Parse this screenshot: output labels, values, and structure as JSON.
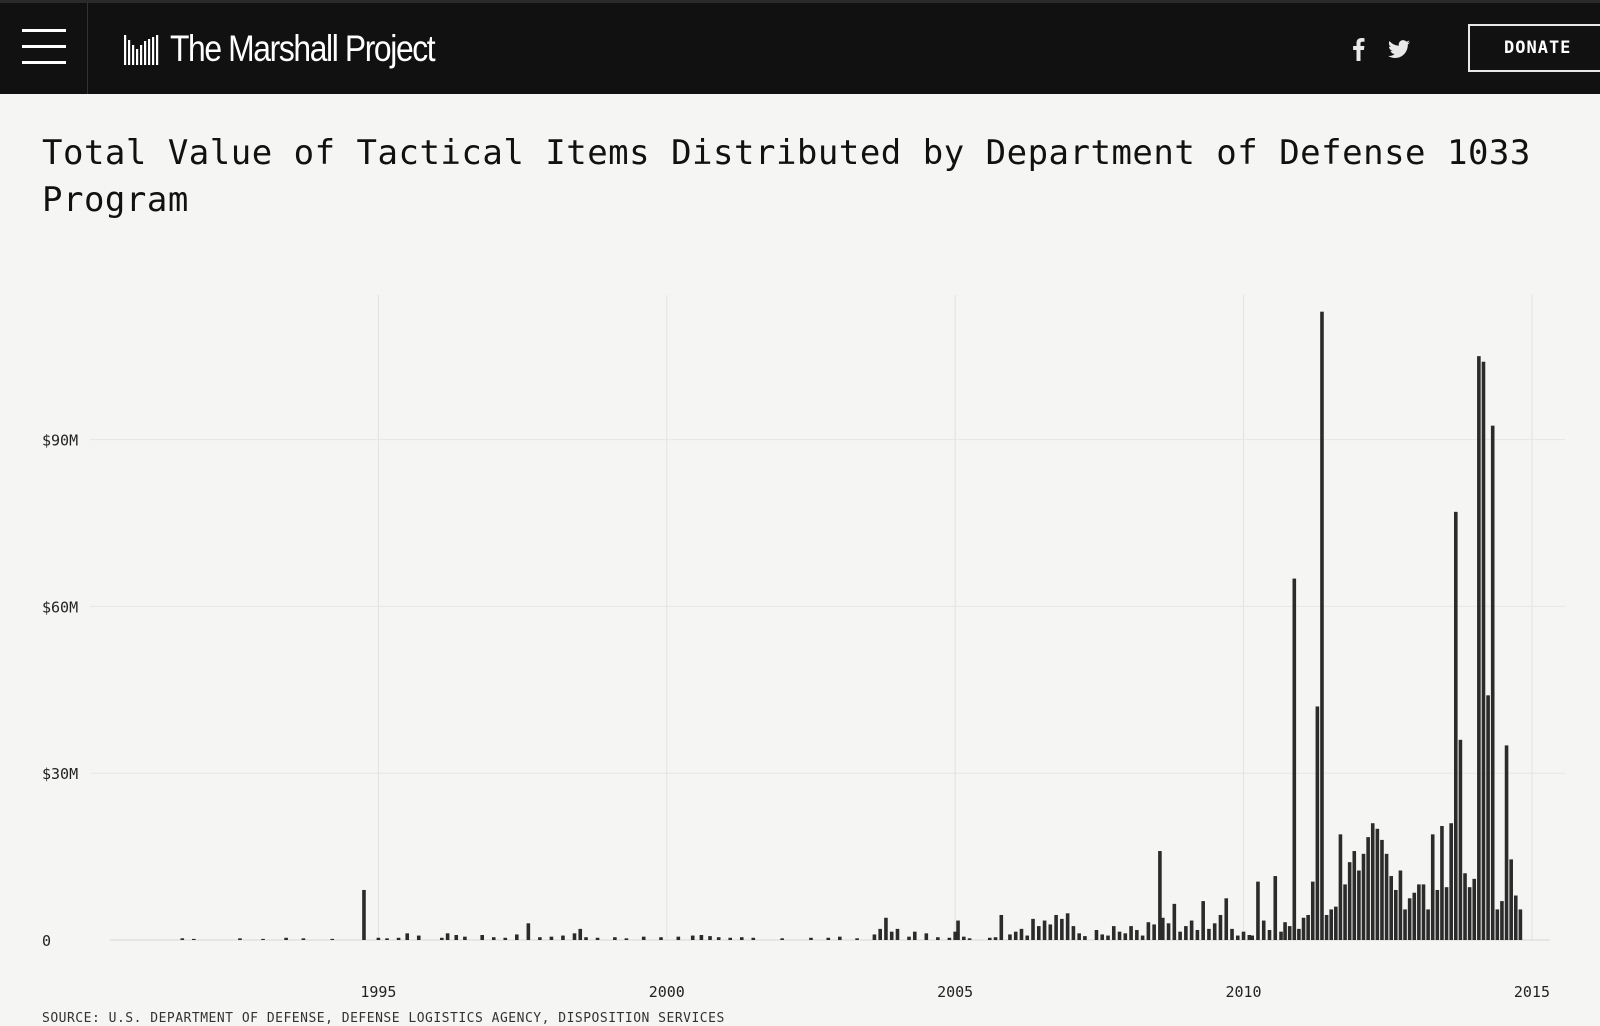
{
  "header": {
    "logo_text": "The Marshall Project",
    "donate_label": "DONATE"
  },
  "icons": {
    "menu": "hamburger-icon",
    "logo": "bars-logo-icon",
    "facebook": "facebook-icon",
    "twitter": "twitter-icon"
  },
  "colors": {
    "header_bg": "#111111",
    "page_bg": "#f5f5f3",
    "bar": "#2b2b2b"
  },
  "chart_data": {
    "type": "bar",
    "title": "Total Value of Tactical Items Distributed by Department of Defense 1033 Program",
    "y_ticks": [
      {
        "value": 0,
        "label": "0"
      },
      {
        "value": 30,
        "label": "$30M"
      },
      {
        "value": 60,
        "label": "$60M"
      },
      {
        "value": 90,
        "label": "$90M"
      }
    ],
    "x_ticks": [
      {
        "value": 1995,
        "label": "1995"
      },
      {
        "value": 2000,
        "label": "2000"
      },
      {
        "value": 2005,
        "label": "2005"
      },
      {
        "value": 2010,
        "label": "2010"
      },
      {
        "value": 2015,
        "label": "2015"
      }
    ],
    "xlim": [
      1990,
      2015.4
    ],
    "ylim": [
      0,
      116
    ],
    "y_unit": "millions of dollars",
    "grid": "vertical at year ticks, horizontal at value ticks",
    "x": [
      1991.6,
      1991.8,
      1992.6,
      1993.0,
      1993.4,
      1993.7,
      1994.2,
      1994.75,
      1995.0,
      1995.15,
      1995.35,
      1995.5,
      1995.7,
      1996.1,
      1996.2,
      1996.35,
      1996.5,
      1996.8,
      1997.0,
      1997.2,
      1997.4,
      1997.6,
      1997.8,
      1998.0,
      1998.2,
      1998.4,
      1998.5,
      1998.6,
      1998.8,
      1999.1,
      1999.3,
      1999.6,
      1999.9,
      2000.2,
      2000.45,
      2000.6,
      2000.75,
      2000.9,
      2001.1,
      2001.3,
      2001.5,
      2002.0,
      2002.5,
      2002.8,
      2003.0,
      2003.3,
      2003.6,
      2003.7,
      2003.8,
      2003.9,
      2004.0,
      2004.2,
      2004.3,
      2004.5,
      2004.7,
      2004.9,
      2005.0,
      2005.05,
      2005.15,
      2005.25,
      2005.6,
      2005.7,
      2005.8,
      2005.95,
      2006.05,
      2006.15,
      2006.25,
      2006.35,
      2006.45,
      2006.55,
      2006.65,
      2006.75,
      2006.85,
      2006.95,
      2007.05,
      2007.15,
      2007.25,
      2007.45,
      2007.55,
      2007.65,
      2007.75,
      2007.85,
      2007.95,
      2008.05,
      2008.15,
      2008.25,
      2008.35,
      2008.45,
      2008.55,
      2008.6,
      2008.7,
      2008.8,
      2008.9,
      2009.0,
      2009.1,
      2009.2,
      2009.3,
      2009.4,
      2009.5,
      2009.6,
      2009.7,
      2009.8,
      2009.9,
      2010.0,
      2010.1,
      2010.15,
      2010.25,
      2010.35,
      2010.45,
      2010.55,
      2010.65,
      2010.72,
      2010.8,
      2010.88,
      2010.96,
      2011.04,
      2011.12,
      2011.2,
      2011.28,
      2011.36,
      2011.44,
      2011.52,
      2011.6,
      2011.68,
      2011.76,
      2011.84,
      2011.92,
      2012.0,
      2012.08,
      2012.16,
      2012.24,
      2012.32,
      2012.4,
      2012.48,
      2012.56,
      2012.64,
      2012.72,
      2012.8,
      2012.88,
      2012.96,
      2013.04,
      2013.12,
      2013.2,
      2013.28,
      2013.36,
      2013.44,
      2013.52,
      2013.6,
      2013.68,
      2013.76,
      2013.84,
      2013.92,
      2014.0,
      2014.08,
      2014.16,
      2014.24,
      2014.32,
      2014.4,
      2014.48,
      2014.56,
      2014.64,
      2014.72,
      2014.8,
      2014.88
    ],
    "values": [
      0.3,
      0.2,
      0.3,
      0.2,
      0.4,
      0.3,
      0.2,
      9.0,
      0.4,
      0.3,
      0.4,
      1.2,
      0.8,
      0.4,
      1.2,
      0.9,
      0.6,
      0.9,
      0.5,
      0.4,
      1.0,
      3.0,
      0.5,
      0.6,
      0.8,
      1.2,
      2.0,
      0.5,
      0.4,
      0.5,
      0.3,
      0.6,
      0.5,
      0.6,
      0.8,
      0.9,
      0.7,
      0.5,
      0.4,
      0.5,
      0.4,
      0.3,
      0.4,
      0.4,
      0.6,
      0.3,
      1.0,
      2.0,
      4.0,
      1.5,
      2.0,
      0.6,
      1.5,
      1.2,
      0.5,
      0.4,
      1.5,
      3.5,
      0.6,
      0.3,
      0.4,
      0.5,
      4.5,
      1.0,
      1.5,
      2.0,
      0.8,
      3.8,
      2.5,
      3.5,
      2.8,
      4.5,
      3.8,
      4.8,
      2.5,
      1.2,
      0.7,
      1.8,
      1.0,
      0.8,
      2.5,
      1.5,
      1.2,
      2.5,
      1.8,
      0.8,
      3.2,
      2.8,
      16.0,
      4.0,
      3.0,
      6.5,
      1.5,
      2.5,
      3.5,
      1.8,
      7.0,
      2.0,
      3.0,
      4.5,
      7.5,
      2.0,
      0.8,
      1.5,
      0.9,
      0.8,
      10.5,
      3.5,
      1.8,
      11.5,
      1.5,
      3.2,
      2.5,
      65.0,
      2.0,
      4.0,
      4.5,
      10.5,
      42.0,
      113.0,
      4.5,
      5.5,
      6.0,
      19.0,
      10.0,
      14.0,
      16.0,
      12.5,
      15.5,
      18.5,
      21.0,
      20.0,
      18.0,
      15.5,
      11.5,
      9.0,
      12.5,
      5.5,
      7.5,
      8.5,
      10.0,
      10.0,
      5.5,
      19.0,
      9.0,
      20.5,
      9.5,
      21.0,
      77.0,
      36.0,
      12.0,
      9.5,
      11.0,
      105.0,
      104.0,
      44.0,
      92.5,
      5.5,
      7.0,
      35.0,
      14.5,
      8.0,
      5.5,
      0
    ]
  },
  "footer": {
    "source": "SOURCE: U.S. DEPARTMENT OF DEFENSE, DEFENSE LOGISTICS AGENCY, DISPOSITION SERVICES"
  }
}
